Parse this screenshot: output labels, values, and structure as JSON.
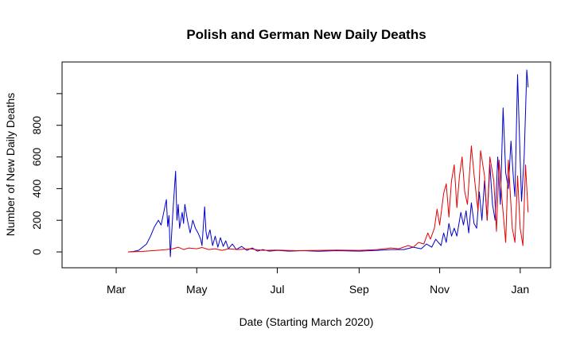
{
  "chart_data": {
    "type": "line",
    "title": "Polish and German New Daily Deaths",
    "xlabel": "Date (Starting March 2020)",
    "ylabel": "Number of New Daily Deaths",
    "xlim": [
      "2020-01-20",
      "2021-01-24"
    ],
    "ylim": [
      -100,
      1200
    ],
    "x_ticks": [
      {
        "date": "2020-03-01",
        "label": "Mar"
      },
      {
        "date": "2020-05-01",
        "label": "May"
      },
      {
        "date": "2020-07-01",
        "label": "Jul"
      },
      {
        "date": "2020-09-01",
        "label": "Sep"
      },
      {
        "date": "2020-11-01",
        "label": "Nov"
      },
      {
        "date": "2021-01-01",
        "label": "Jan"
      }
    ],
    "y_ticks": [
      0,
      200,
      400,
      600,
      800,
      1000
    ],
    "y_tick_labels": [
      "0",
      "200",
      "400",
      "600",
      "800",
      ""
    ],
    "grid": false,
    "legend": "none",
    "series": [
      {
        "color": "#0000cc",
        "points": [
          [
            "2020-03-10",
            0
          ],
          [
            "2020-03-14",
            3
          ],
          [
            "2020-03-18",
            10
          ],
          [
            "2020-03-21",
            30
          ],
          [
            "2020-03-24",
            50
          ],
          [
            "2020-03-27",
            100
          ],
          [
            "2020-03-30",
            160
          ],
          [
            "2020-04-02",
            200
          ],
          [
            "2020-04-04",
            170
          ],
          [
            "2020-04-06",
            250
          ],
          [
            "2020-04-08",
            330
          ],
          [
            "2020-04-09",
            160
          ],
          [
            "2020-04-10",
            230
          ],
          [
            "2020-04-11",
            -30
          ],
          [
            "2020-04-13",
            260
          ],
          [
            "2020-04-15",
            510
          ],
          [
            "2020-04-16",
            200
          ],
          [
            "2020-04-17",
            300
          ],
          [
            "2020-04-18",
            150
          ],
          [
            "2020-04-20",
            250
          ],
          [
            "2020-04-21",
            180
          ],
          [
            "2020-04-22",
            300
          ],
          [
            "2020-04-24",
            200
          ],
          [
            "2020-04-26",
            120
          ],
          [
            "2020-04-28",
            200
          ],
          [
            "2020-04-30",
            150
          ],
          [
            "2020-05-02",
            120
          ],
          [
            "2020-05-04",
            80
          ],
          [
            "2020-05-05",
            40
          ],
          [
            "2020-05-07",
            285
          ],
          [
            "2020-05-08",
            130
          ],
          [
            "2020-05-09",
            80
          ],
          [
            "2020-05-11",
            140
          ],
          [
            "2020-05-13",
            40
          ],
          [
            "2020-05-15",
            100
          ],
          [
            "2020-05-17",
            30
          ],
          [
            "2020-05-19",
            90
          ],
          [
            "2020-05-21",
            35
          ],
          [
            "2020-05-23",
            70
          ],
          [
            "2020-05-25",
            20
          ],
          [
            "2020-05-28",
            50
          ],
          [
            "2020-05-31",
            15
          ],
          [
            "2020-06-04",
            35
          ],
          [
            "2020-06-08",
            10
          ],
          [
            "2020-06-12",
            25
          ],
          [
            "2020-06-16",
            5
          ],
          [
            "2020-06-20",
            15
          ],
          [
            "2020-06-25",
            5
          ],
          [
            "2020-07-01",
            10
          ],
          [
            "2020-07-10",
            5
          ],
          [
            "2020-07-20",
            8
          ],
          [
            "2020-08-01",
            4
          ],
          [
            "2020-08-15",
            8
          ],
          [
            "2020-09-01",
            5
          ],
          [
            "2020-09-15",
            10
          ],
          [
            "2020-09-25",
            15
          ],
          [
            "2020-10-05",
            15
          ],
          [
            "2020-10-12",
            30
          ],
          [
            "2020-10-18",
            20
          ],
          [
            "2020-10-22",
            50
          ],
          [
            "2020-10-26",
            30
          ],
          [
            "2020-10-29",
            80
          ],
          [
            "2020-11-02",
            40
          ],
          [
            "2020-11-04",
            120
          ],
          [
            "2020-11-06",
            60
          ],
          [
            "2020-11-08",
            180
          ],
          [
            "2020-11-10",
            100
          ],
          [
            "2020-11-12",
            150
          ],
          [
            "2020-11-14",
            100
          ],
          [
            "2020-11-17",
            250
          ],
          [
            "2020-11-19",
            170
          ],
          [
            "2020-11-21",
            260
          ],
          [
            "2020-11-23",
            120
          ],
          [
            "2020-11-25",
            310
          ],
          [
            "2020-11-27",
            180
          ],
          [
            "2020-11-29",
            150
          ],
          [
            "2020-12-01",
            380
          ],
          [
            "2020-12-03",
            200
          ],
          [
            "2020-12-05",
            450
          ],
          [
            "2020-12-07",
            200
          ],
          [
            "2020-12-09",
            550
          ],
          [
            "2020-12-11",
            300
          ],
          [
            "2020-12-13",
            200
          ],
          [
            "2020-12-15",
            600
          ],
          [
            "2020-12-17",
            300
          ],
          [
            "2020-12-19",
            910
          ],
          [
            "2020-12-21",
            500
          ],
          [
            "2020-12-23",
            400
          ],
          [
            "2020-12-25",
            700
          ],
          [
            "2020-12-27",
            450
          ],
          [
            "2020-12-28",
            350
          ],
          [
            "2020-12-30",
            1120
          ],
          [
            "2021-01-01",
            580
          ],
          [
            "2021-01-02",
            320
          ],
          [
            "2021-01-04",
            600
          ],
          [
            "2021-01-06",
            1150
          ],
          [
            "2021-01-07",
            1040
          ]
        ]
      },
      {
        "color": "#e60000",
        "points": [
          [
            "2020-03-10",
            0
          ],
          [
            "2020-03-20",
            3
          ],
          [
            "2020-04-01",
            10
          ],
          [
            "2020-04-08",
            15
          ],
          [
            "2020-04-13",
            20
          ],
          [
            "2020-04-17",
            30
          ],
          [
            "2020-04-21",
            15
          ],
          [
            "2020-04-25",
            25
          ],
          [
            "2020-05-01",
            20
          ],
          [
            "2020-05-05",
            28
          ],
          [
            "2020-05-10",
            15
          ],
          [
            "2020-05-15",
            20
          ],
          [
            "2020-05-20",
            10
          ],
          [
            "2020-05-25",
            20
          ],
          [
            "2020-06-01",
            15
          ],
          [
            "2020-06-10",
            20
          ],
          [
            "2020-06-20",
            10
          ],
          [
            "2020-07-01",
            12
          ],
          [
            "2020-07-15",
            8
          ],
          [
            "2020-08-01",
            10
          ],
          [
            "2020-08-15",
            12
          ],
          [
            "2020-09-01",
            10
          ],
          [
            "2020-09-15",
            15
          ],
          [
            "2020-09-25",
            25
          ],
          [
            "2020-10-01",
            20
          ],
          [
            "2020-10-08",
            40
          ],
          [
            "2020-10-12",
            30
          ],
          [
            "2020-10-16",
            60
          ],
          [
            "2020-10-20",
            50
          ],
          [
            "2020-10-23",
            120
          ],
          [
            "2020-10-25",
            80
          ],
          [
            "2020-10-28",
            150
          ],
          [
            "2020-10-30",
            270
          ],
          [
            "2020-11-01",
            170
          ],
          [
            "2020-11-04",
            370
          ],
          [
            "2020-11-06",
            430
          ],
          [
            "2020-11-08",
            220
          ],
          [
            "2020-11-10",
            450
          ],
          [
            "2020-11-12",
            550
          ],
          [
            "2020-11-14",
            280
          ],
          [
            "2020-11-16",
            480
          ],
          [
            "2020-11-18",
            600
          ],
          [
            "2020-11-20",
            380
          ],
          [
            "2020-11-22",
            300
          ],
          [
            "2020-11-25",
            670
          ],
          [
            "2020-11-27",
            490
          ],
          [
            "2020-11-30",
            260
          ],
          [
            "2020-12-02",
            640
          ],
          [
            "2020-12-05",
            480
          ],
          [
            "2020-12-07",
            200
          ],
          [
            "2020-12-09",
            600
          ],
          [
            "2020-12-12",
            450
          ],
          [
            "2020-12-14",
            130
          ],
          [
            "2020-12-16",
            580
          ],
          [
            "2020-12-18",
            350
          ],
          [
            "2020-12-21",
            60
          ],
          [
            "2020-12-23",
            580
          ],
          [
            "2020-12-26",
            150
          ],
          [
            "2020-12-28",
            60
          ],
          [
            "2020-12-30",
            480
          ],
          [
            "2021-01-01",
            150
          ],
          [
            "2021-01-03",
            40
          ],
          [
            "2021-01-05",
            550
          ],
          [
            "2021-01-07",
            250
          ]
        ]
      }
    ]
  }
}
